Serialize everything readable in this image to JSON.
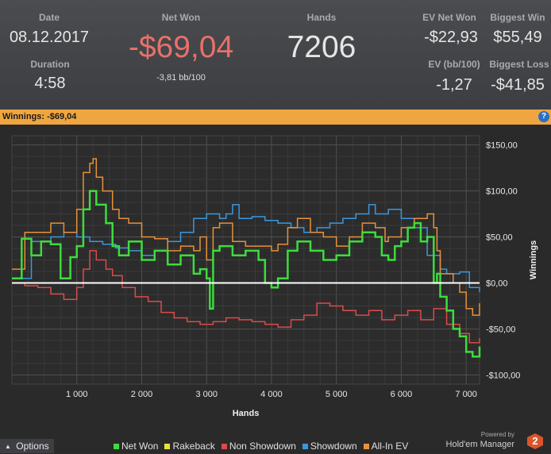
{
  "header": {
    "date_label": "Date",
    "date_value": "08.12.2017",
    "duration_label": "Duration",
    "duration_value": "4:58",
    "net_won_label": "Net Won",
    "net_won_value": "-$69,04",
    "net_won_sub": "-3,81 bb/100",
    "hands_label": "Hands",
    "hands_value": "7206",
    "ev_net_won_label": "EV Net Won",
    "ev_net_won_value": "-$22,93",
    "biggest_win_label": "Biggest Win",
    "biggest_win_value": "$55,49",
    "ev_bb_label": "EV (bb/100)",
    "ev_bb_value": "-1,27",
    "biggest_loss_label": "Biggest Loss",
    "biggest_loss_value": "-$41,85",
    "net_won_color": "#e8706a"
  },
  "banner": {
    "text": "Winnings: -$69,04",
    "help_glyph": "?"
  },
  "footer": {
    "options_label": "Options",
    "options_arrow": "▲",
    "powered_by": "Powered by",
    "brand": "Hold'em Manager",
    "brand_badge": "2"
  },
  "chart_data": {
    "type": "line",
    "xlabel": "Hands",
    "ylabel": "Winnings",
    "xlim": [
      0,
      7206
    ],
    "ylim": [
      -110,
      160
    ],
    "x_ticks": [
      1000,
      2000,
      3000,
      4000,
      5000,
      6000,
      7000
    ],
    "x_tick_labels": [
      "1 000",
      "2 000",
      "3 000",
      "4 000",
      "5 000",
      "6 000",
      "7 000"
    ],
    "y_ticks": [
      150,
      100,
      50,
      0,
      -50,
      -100
    ],
    "y_tick_labels": [
      "$150,00",
      "$100,00",
      "$50,00",
      "$0,00",
      "-$50,00",
      "-$100,00"
    ],
    "legend_position": "bottom",
    "series": [
      {
        "name": "Net Won",
        "color": "#3ddc3d",
        "x": [
          0,
          150,
          300,
          450,
          600,
          750,
          900,
          1000,
          1100,
          1200,
          1300,
          1450,
          1550,
          1650,
          1800,
          2000,
          2200,
          2400,
          2600,
          2800,
          2900,
          3000,
          3050,
          3100,
          3200,
          3400,
          3600,
          3800,
          3900,
          4000,
          4100,
          4250,
          4400,
          4600,
          4800,
          5000,
          5200,
          5400,
          5600,
          5700,
          5800,
          5900,
          6000,
          6100,
          6200,
          6300,
          6400,
          6500,
          6550,
          6600,
          6700,
          6800,
          6900,
          7000,
          7100,
          7206
        ],
        "values": [
          5,
          48,
          30,
          45,
          42,
          5,
          28,
          40,
          80,
          100,
          85,
          65,
          40,
          30,
          45,
          25,
          35,
          20,
          30,
          10,
          15,
          5,
          -28,
          35,
          40,
          30,
          35,
          25,
          0,
          -5,
          5,
          35,
          45,
          35,
          25,
          30,
          45,
          55,
          50,
          30,
          25,
          40,
          45,
          60,
          65,
          45,
          50,
          0,
          10,
          -15,
          -30,
          -50,
          -58,
          -75,
          -80,
          -69
        ]
      },
      {
        "name": "Rakeback",
        "color": "#e8e23a",
        "x": [
          0,
          7206
        ],
        "values": [
          0,
          0
        ]
      },
      {
        "name": "Non Showdown",
        "color": "#dd4a4a",
        "x": [
          0,
          200,
          400,
          600,
          800,
          1000,
          1100,
          1200,
          1300,
          1450,
          1550,
          1700,
          1900,
          2100,
          2300,
          2500,
          2700,
          2900,
          3100,
          3300,
          3500,
          3700,
          3900,
          4100,
          4300,
          4500,
          4700,
          4900,
          5100,
          5300,
          5500,
          5700,
          5900,
          6100,
          6300,
          6500,
          6700,
          6900,
          7050,
          7206
        ],
        "values": [
          0,
          -3,
          -5,
          -12,
          -18,
          -5,
          15,
          35,
          25,
          15,
          8,
          -5,
          -15,
          -20,
          -32,
          -38,
          -42,
          -45,
          -42,
          -38,
          -40,
          -42,
          -45,
          -48,
          -40,
          -35,
          -22,
          -25,
          -30,
          -35,
          -30,
          -40,
          -35,
          -30,
          -40,
          -28,
          -45,
          -55,
          -65,
          -60
        ]
      },
      {
        "name": "Showdown",
        "color": "#3b97dd",
        "x": [
          0,
          300,
          600,
          800,
          1000,
          1200,
          1400,
          1600,
          1800,
          2000,
          2200,
          2400,
          2600,
          2800,
          3000,
          3200,
          3300,
          3400,
          3500,
          3700,
          3900,
          4100,
          4300,
          4500,
          4700,
          4900,
          5100,
          5300,
          5500,
          5600,
          5800,
          6000,
          6200,
          6400,
          6600,
          6700,
          6900,
          7050,
          7206
        ],
        "values": [
          5,
          45,
          50,
          55,
          50,
          45,
          42,
          38,
          35,
          30,
          35,
          45,
          55,
          70,
          75,
          70,
          75,
          85,
          70,
          72,
          68,
          65,
          60,
          55,
          60,
          65,
          70,
          75,
          85,
          75,
          80,
          70,
          60,
          30,
          15,
          10,
          12,
          -5,
          -10
        ]
      },
      {
        "name": "All-In EV",
        "color": "#e8913a",
        "x": [
          0,
          200,
          400,
          600,
          800,
          1000,
          1100,
          1200,
          1250,
          1300,
          1400,
          1550,
          1650,
          1800,
          2000,
          2200,
          2400,
          2600,
          2800,
          2900,
          3000,
          3100,
          3200,
          3400,
          3600,
          3800,
          4000,
          4100,
          4250,
          4400,
          4600,
          4800,
          5000,
          5200,
          5400,
          5600,
          5750,
          5800,
          6000,
          6200,
          6400,
          6500,
          6550,
          6600,
          6800,
          6900,
          7000,
          7100,
          7206
        ],
        "values": [
          15,
          55,
          55,
          65,
          55,
          80,
          120,
          130,
          135,
          115,
          100,
          80,
          70,
          65,
          50,
          48,
          35,
          40,
          35,
          50,
          25,
          60,
          65,
          45,
          40,
          40,
          35,
          42,
          60,
          70,
          55,
          50,
          40,
          50,
          65,
          60,
          45,
          50,
          60,
          70,
          75,
          60,
          35,
          10,
          0,
          -10,
          -28,
          -35,
          -22
        ]
      }
    ]
  }
}
